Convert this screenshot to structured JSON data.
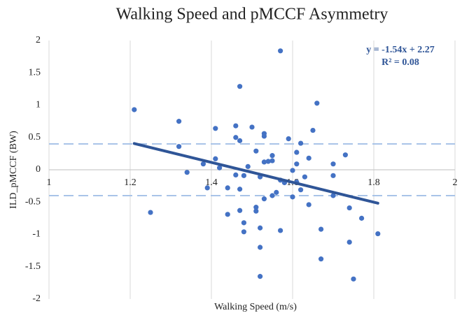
{
  "chart_data": {
    "type": "scatter",
    "title": "Walking Speed and pMCCF Asymmetry",
    "x_label": "Walking Speed (m/s)",
    "y_label": "ILD_pMCCF (BW)",
    "xlim": [
      1,
      2
    ],
    "xticks": [
      1,
      1.2,
      1.4,
      1.6,
      1.8,
      2
    ],
    "ylim": [
      -2,
      2
    ],
    "yticks": [
      -2,
      -1.5,
      -1,
      -0.5,
      0,
      0.5,
      1,
      1.5,
      2
    ],
    "grid": true,
    "color": "#4472c4",
    "trendline": {
      "slope": -1.54,
      "intercept": 2.27,
      "color": "#2f5597",
      "equation": "y = -1.54x + 2.27",
      "r_squared": "R² = 0.08"
    },
    "reference_lines": {
      "values": [
        0.4,
        -0.4
      ],
      "color": "#a9c4e8"
    },
    "series": [
      {
        "name": "pMCCF",
        "x": [
          1.21,
          1.25,
          1.32,
          1.32,
          1.34,
          1.38,
          1.39,
          1.41,
          1.41,
          1.42,
          1.44,
          1.44,
          1.46,
          1.46,
          1.47,
          1.46,
          1.47,
          1.47,
          1.47,
          1.48,
          1.48,
          1.48,
          1.49,
          1.5,
          1.51,
          1.51,
          1.51,
          1.52,
          1.52,
          1.52,
          1.53,
          1.53,
          1.52,
          1.53,
          1.53,
          1.54,
          1.55,
          1.55,
          1.55,
          1.56,
          1.57,
          1.57,
          1.57,
          1.58,
          1.59,
          1.6,
          1.6,
          1.61,
          1.61,
          1.61,
          1.62,
          1.62,
          1.63,
          1.64,
          1.64,
          1.65,
          1.66,
          1.67,
          1.67,
          1.7,
          1.7,
          1.7,
          1.73,
          1.74,
          1.74,
          1.75,
          1.77,
          1.81
        ],
        "values": [
          0.93,
          -0.66,
          0.75,
          0.36,
          -0.04,
          0.09,
          -0.28,
          0.64,
          0.17,
          0.03,
          -0.28,
          -0.69,
          0.5,
          0.68,
          1.29,
          -0.08,
          -0.3,
          0.45,
          -0.63,
          -0.96,
          -0.82,
          -0.09,
          0.05,
          0.66,
          -0.58,
          0.29,
          -0.64,
          -0.11,
          -1.2,
          -0.9,
          0.56,
          0.52,
          -1.65,
          0.12,
          -0.45,
          0.13,
          -0.4,
          0.22,
          0.14,
          -0.35,
          -0.94,
          -0.16,
          1.84,
          -0.2,
          0.48,
          -0.01,
          -0.42,
          -0.19,
          0.27,
          0.09,
          -0.31,
          0.41,
          -0.11,
          0.18,
          -0.54,
          0.61,
          1.03,
          -1.38,
          -0.92,
          0.09,
          -0.09,
          -0.4,
          0.23,
          -0.59,
          -1.12,
          -1.69,
          -0.75,
          -0.99
        ]
      }
    ]
  }
}
